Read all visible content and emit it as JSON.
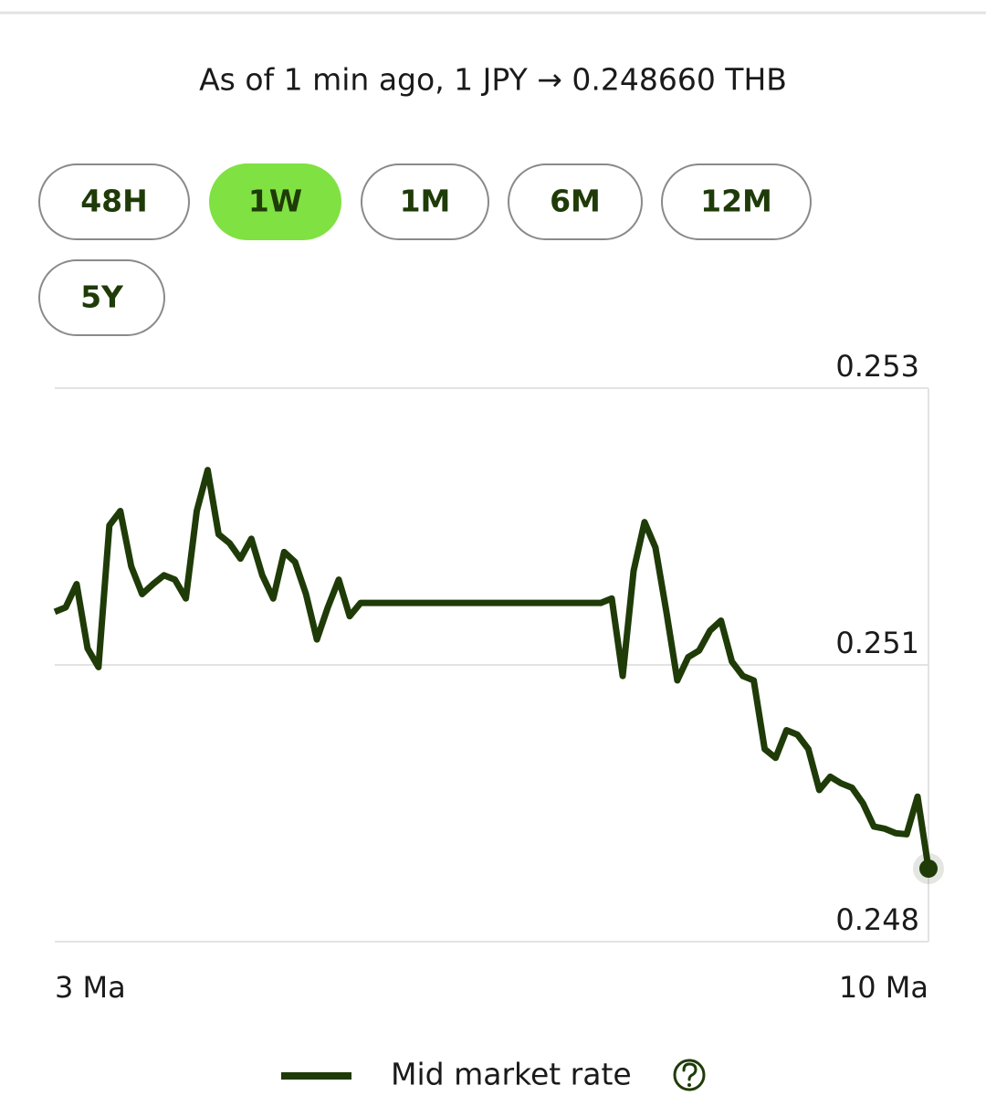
{
  "header": {
    "text": "As of 1 min ago, 1 JPY → 0.248660 THB"
  },
  "ranges": {
    "buttons": [
      "48H",
      "1W",
      "1M",
      "6M",
      "12M",
      "5Y"
    ],
    "selected": 1
  },
  "chart_data": {
    "type": "line",
    "categories": [
      "3 Ma",
      null,
      null,
      null,
      null,
      null,
      null,
      null,
      null,
      null,
      null,
      null,
      null,
      null,
      null,
      null,
      null,
      null,
      null,
      null,
      null,
      null,
      null,
      null,
      null,
      null,
      null,
      null,
      null,
      null,
      null,
      null,
      null,
      null,
      null,
      null,
      null,
      null,
      null,
      null,
      null,
      null,
      null,
      null,
      null,
      null,
      null,
      null,
      null,
      null,
      null,
      null,
      null,
      null,
      null,
      null,
      null,
      null,
      null,
      null,
      null,
      null,
      null,
      null,
      null,
      null,
      null,
      null,
      null,
      null,
      null,
      null,
      null,
      null,
      null,
      null,
      null,
      null,
      null,
      null,
      "10 Ma"
    ],
    "series": [
      {
        "name": "Mid market rate",
        "color": "#1f3b08",
        "values": [
          0.25098,
          0.25102,
          0.25123,
          0.25065,
          0.25048,
          0.25176,
          0.25189,
          0.25139,
          0.25114,
          0.25123,
          0.25131,
          0.25127,
          0.2511,
          0.25189,
          0.25226,
          0.25168,
          0.2516,
          0.25146,
          0.25164,
          0.25131,
          0.2511,
          0.25152,
          0.25143,
          0.25114,
          0.25073,
          0.25102,
          0.25127,
          0.25094,
          0.25106,
          0.25106,
          0.25106,
          0.25106,
          0.25106,
          0.25106,
          0.25106,
          0.25106,
          0.25106,
          0.25106,
          0.25106,
          0.25106,
          0.25106,
          0.25106,
          0.25106,
          0.25106,
          0.25106,
          0.25106,
          0.25106,
          0.25106,
          0.25106,
          0.25106,
          0.25106,
          0.2511,
          0.2504,
          0.25135,
          0.25179,
          0.25156,
          0.25098,
          0.25036,
          0.25057,
          0.25063,
          0.25081,
          0.2509,
          0.25053,
          0.2504,
          0.25036,
          0.24974,
          0.24966,
          0.24991,
          0.24987,
          0.24974,
          0.24937,
          0.24949,
          0.24943,
          0.24939,
          0.24925,
          0.24904,
          0.24902,
          0.24898,
          0.24897,
          0.24931,
          0.24866
        ]
      }
    ],
    "ylim": [
      0.248,
      0.253
    ],
    "yticks": [
      0.253,
      {
        "value": 0.2505,
        "label": "0.251"
      },
      0.248
    ],
    "grid": true
  }
}
